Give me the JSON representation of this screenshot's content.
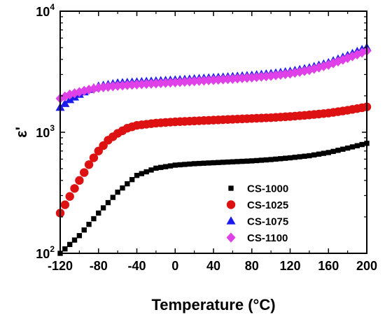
{
  "chart_data": {
    "type": "scatter",
    "xlabel": "Temperature (°C)",
    "ylabel": "ε'",
    "xlim": [
      -120,
      200
    ],
    "ylim": [
      100,
      10000
    ],
    "y_scale": "log",
    "x_ticks": [
      -120,
      -80,
      -40,
      0,
      40,
      80,
      120,
      160,
      200
    ],
    "y_ticks": [
      {
        "value": 100,
        "base": "10",
        "exp": "2"
      },
      {
        "value": 1000,
        "base": "10",
        "exp": "3"
      },
      {
        "value": 10000,
        "base": "10",
        "exp": "4"
      }
    ],
    "grid": false,
    "legend_position": "bottom-right",
    "series": [
      {
        "name": "CS-1000",
        "marker": "square",
        "color": "#000000",
        "points": [
          [
            -120,
            100
          ],
          [
            -100,
            140
          ],
          [
            -80,
            215
          ],
          [
            -60,
            320
          ],
          [
            -40,
            440
          ],
          [
            -20,
            505
          ],
          [
            0,
            535
          ],
          [
            20,
            550
          ],
          [
            40,
            560
          ],
          [
            60,
            570
          ],
          [
            80,
            580
          ],
          [
            100,
            595
          ],
          [
            120,
            615
          ],
          [
            140,
            640
          ],
          [
            160,
            680
          ],
          [
            180,
            740
          ],
          [
            200,
            810
          ]
        ]
      },
      {
        "name": "CS-1025",
        "marker": "circle",
        "color": "#dd1111",
        "points": [
          [
            -120,
            215
          ],
          [
            -110,
            295
          ],
          [
            -100,
            400
          ],
          [
            -90,
            540
          ],
          [
            -80,
            700
          ],
          [
            -70,
            860
          ],
          [
            -60,
            980
          ],
          [
            -50,
            1080
          ],
          [
            -40,
            1140
          ],
          [
            -20,
            1190
          ],
          [
            0,
            1220
          ],
          [
            20,
            1240
          ],
          [
            40,
            1260
          ],
          [
            60,
            1280
          ],
          [
            80,
            1300
          ],
          [
            100,
            1320
          ],
          [
            120,
            1350
          ],
          [
            140,
            1390
          ],
          [
            160,
            1440
          ],
          [
            180,
            1520
          ],
          [
            200,
            1620
          ]
        ]
      },
      {
        "name": "CS-1075",
        "marker": "triangle",
        "color": "#1a1aee",
        "points": [
          [
            -120,
            1600
          ],
          [
            -110,
            1850
          ],
          [
            -100,
            2050
          ],
          [
            -90,
            2250
          ],
          [
            -80,
            2400
          ],
          [
            -60,
            2550
          ],
          [
            -40,
            2600
          ],
          [
            -20,
            2650
          ],
          [
            0,
            2700
          ],
          [
            20,
            2760
          ],
          [
            40,
            2820
          ],
          [
            60,
            2880
          ],
          [
            80,
            2950
          ],
          [
            100,
            3050
          ],
          [
            120,
            3180
          ],
          [
            140,
            3400
          ],
          [
            160,
            3750
          ],
          [
            180,
            4300
          ],
          [
            200,
            5000
          ]
        ]
      },
      {
        "name": "CS-1100",
        "marker": "diamond",
        "color": "#e040e8",
        "points": [
          [
            -120,
            1900
          ],
          [
            -110,
            2050
          ],
          [
            -100,
            2150
          ],
          [
            -90,
            2250
          ],
          [
            -80,
            2330
          ],
          [
            -60,
            2420
          ],
          [
            -40,
            2480
          ],
          [
            -20,
            2530
          ],
          [
            0,
            2580
          ],
          [
            20,
            2640
          ],
          [
            40,
            2700
          ],
          [
            60,
            2760
          ],
          [
            80,
            2830
          ],
          [
            100,
            2920
          ],
          [
            120,
            3050
          ],
          [
            140,
            3260
          ],
          [
            160,
            3600
          ],
          [
            180,
            4100
          ],
          [
            200,
            4700
          ]
        ]
      }
    ]
  }
}
